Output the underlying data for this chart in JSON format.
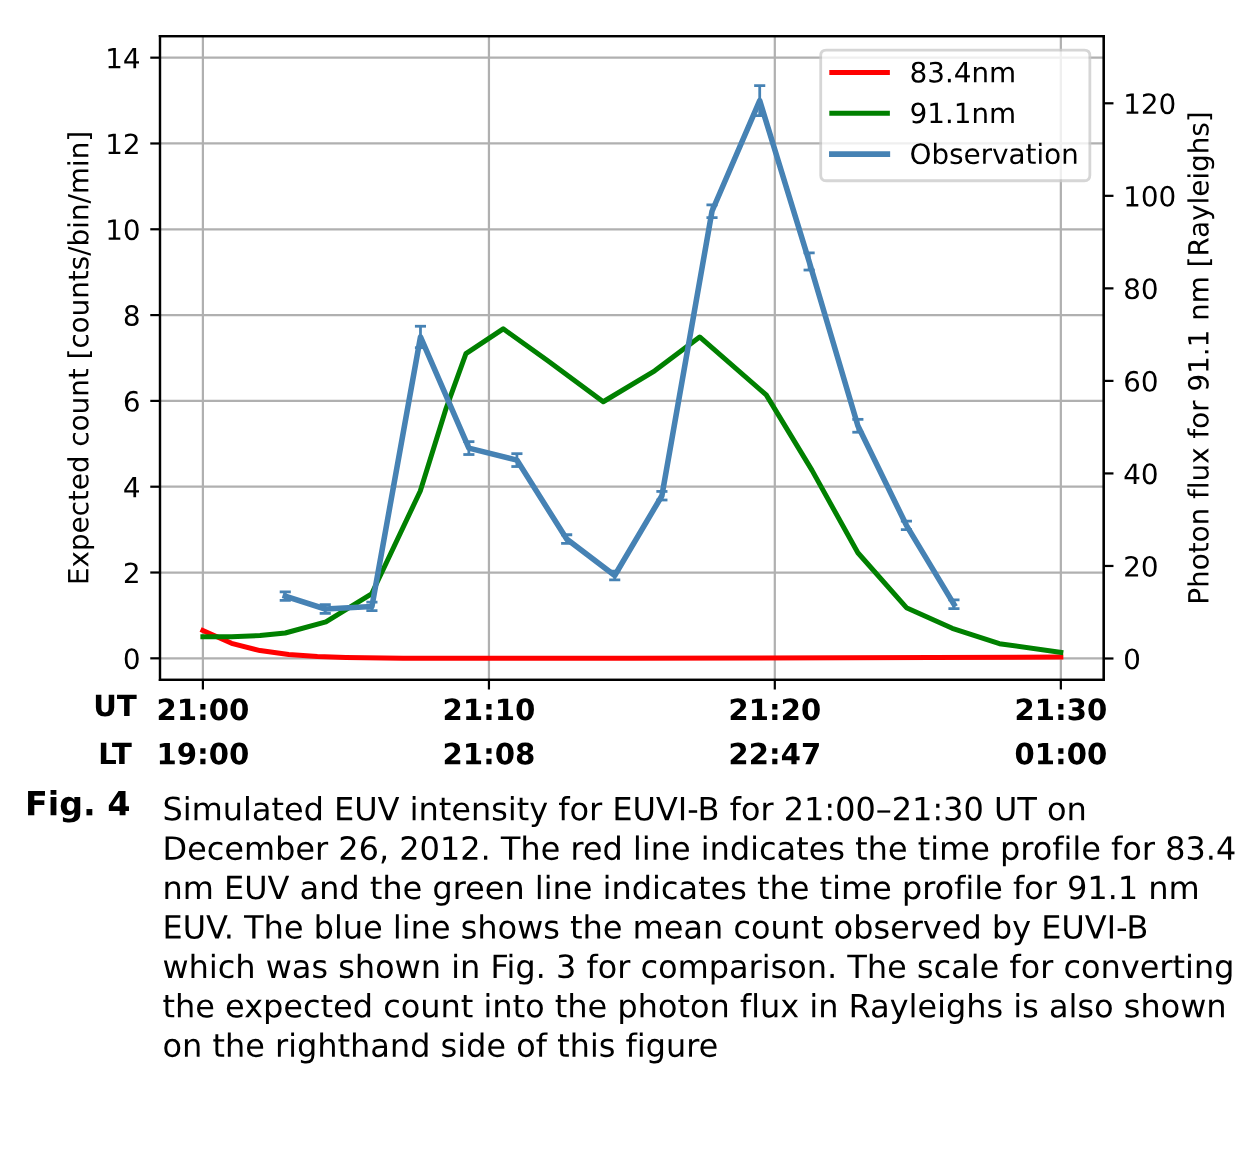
{
  "chart_data": {
    "type": "line",
    "xlabel": null,
    "ylabel": "Expected count [counts/bin/min]",
    "y2label": "Photon flux for 91.1 nm [Rayleighs]",
    "xlim": [
      20.975,
      21.525
    ],
    "xticks": [
      {
        "value": 21.0,
        "label": "21:00"
      },
      {
        "value": 21.1667,
        "label": "21:10"
      },
      {
        "value": 21.3333,
        "label": "21:20"
      },
      {
        "value": 21.5,
        "label": "21:30"
      }
    ],
    "ylim": [
      -0.5,
      14.5
    ],
    "yticks": [
      0,
      2,
      4,
      6,
      8,
      10,
      12,
      14
    ],
    "y2lim": [
      -4.6,
      134.5
    ],
    "y2ticks": [
      0,
      20,
      40,
      60,
      80,
      100,
      120
    ],
    "grid": true,
    "legend": "top right",
    "series": [
      {
        "name": "83.4nm",
        "color": "#ff0000",
        "x": [
          21.0,
          21.0167,
          21.0333,
          21.05,
          21.0667,
          21.0833,
          21.1167,
          21.25,
          21.5
        ],
        "values": [
          0.65,
          0.35,
          0.18,
          0.09,
          0.04,
          0.02,
          0.0,
          0.0,
          0.03
        ]
      },
      {
        "name": "91.1nm",
        "color": "#008000",
        "x": [
          21.0,
          21.0167,
          21.0333,
          21.048,
          21.0717,
          21.0983,
          21.1267,
          21.1417,
          21.1533,
          21.175,
          21.2008,
          21.2333,
          21.2633,
          21.2895,
          21.3283,
          21.355,
          21.3817,
          21.41,
          21.4367,
          21.4642,
          21.5
        ],
        "values": [
          0.5,
          0.5,
          0.53,
          0.59,
          0.85,
          1.5,
          3.9,
          5.82,
          7.1,
          7.68,
          6.94,
          5.98,
          6.7,
          7.49,
          6.14,
          4.38,
          2.46,
          1.18,
          0.7,
          0.34,
          0.14
        ]
      },
      {
        "name": "Observation",
        "color": "#4682b4",
        "x": [
          21.048,
          21.0713,
          21.0985,
          21.1268,
          21.155,
          21.183,
          21.212,
          21.24,
          21.2675,
          21.2967,
          21.3245,
          21.3533,
          21.3817,
          21.41,
          21.4377
        ],
        "values": [
          1.45,
          1.15,
          1.21,
          7.49,
          4.9,
          4.62,
          2.78,
          1.93,
          3.79,
          10.42,
          13.0,
          9.25,
          5.42,
          3.1,
          1.26
        ],
        "errors": [
          0.1,
          0.1,
          0.1,
          0.25,
          0.15,
          0.15,
          0.1,
          0.1,
          0.1,
          0.15,
          0.35,
          0.2,
          0.15,
          0.1,
          0.1
        ]
      }
    ],
    "annotations": [
      "UT",
      "LT",
      "19:00",
      "21:08",
      "22:47",
      "01:00",
      "Fig. 4",
      "Simulated EUV intensity for EUVI-B for 21:00–21:30 UT on December 26, 2012. The red line indicates the time profile for 83.4 nm EUV and the green line indicates the time profile for 91.1 nm EUV. The blue line shows the mean count observed by EUVI-B which was shown in Fig. 3 for comparison. The scale for converting the expected count into the photon flux in Rayleighs is also shown on the righthand side of this figure"
    ]
  }
}
